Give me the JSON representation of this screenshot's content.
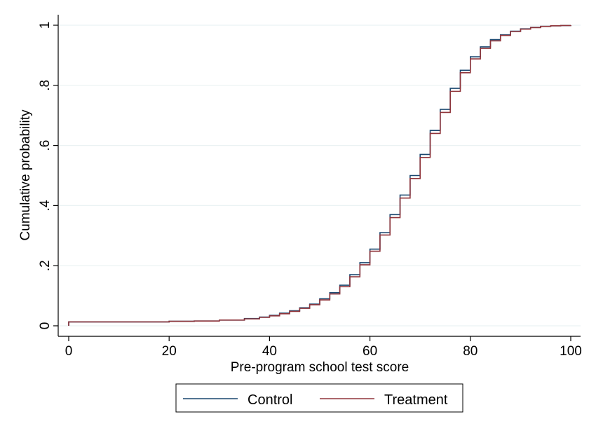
{
  "chart_data": {
    "type": "line",
    "xlabel": "Pre-program school test score",
    "ylabel": "Cumulative probability",
    "xlim": [
      0,
      100
    ],
    "ylim": [
      0,
      1
    ],
    "xticks": [
      "0",
      "20",
      "40",
      "60",
      "80",
      "100"
    ],
    "yticks": [
      "0",
      ".2",
      ".4",
      ".6",
      ".8",
      "1"
    ],
    "grid": "horizontal",
    "legend_position": "bottom",
    "line_style": "step",
    "series": [
      {
        "name": "Control",
        "color": "#1a476f",
        "x": [
          0,
          10,
          20,
          25,
          30,
          35,
          38,
          40,
          42,
          44,
          46,
          48,
          50,
          52,
          54,
          56,
          58,
          60,
          62,
          64,
          66,
          68,
          70,
          72,
          74,
          76,
          78,
          80,
          82,
          84,
          86,
          88,
          90,
          92,
          94,
          96,
          98,
          100
        ],
        "y": [
          0.013,
          0.013,
          0.015,
          0.016,
          0.019,
          0.024,
          0.029,
          0.035,
          0.042,
          0.05,
          0.06,
          0.072,
          0.09,
          0.11,
          0.135,
          0.17,
          0.21,
          0.255,
          0.31,
          0.37,
          0.435,
          0.5,
          0.57,
          0.65,
          0.72,
          0.79,
          0.85,
          0.895,
          0.928,
          0.952,
          0.968,
          0.98,
          0.988,
          0.993,
          0.996,
          0.998,
          0.999,
          1.0
        ]
      },
      {
        "name": "Treatment",
        "color": "#90353b",
        "x": [
          0,
          10,
          20,
          25,
          30,
          35,
          38,
          40,
          42,
          44,
          46,
          48,
          50,
          52,
          54,
          56,
          58,
          60,
          62,
          64,
          66,
          68,
          70,
          72,
          74,
          76,
          78,
          80,
          82,
          84,
          86,
          88,
          90,
          92,
          94,
          96,
          98,
          100
        ],
        "y": [
          0.013,
          0.013,
          0.015,
          0.016,
          0.019,
          0.023,
          0.028,
          0.033,
          0.04,
          0.048,
          0.058,
          0.07,
          0.086,
          0.106,
          0.13,
          0.163,
          0.203,
          0.248,
          0.302,
          0.36,
          0.425,
          0.49,
          0.56,
          0.64,
          0.71,
          0.78,
          0.842,
          0.888,
          0.923,
          0.948,
          0.966,
          0.979,
          0.987,
          0.992,
          0.996,
          0.998,
          0.999,
          1.0
        ]
      }
    ]
  }
}
